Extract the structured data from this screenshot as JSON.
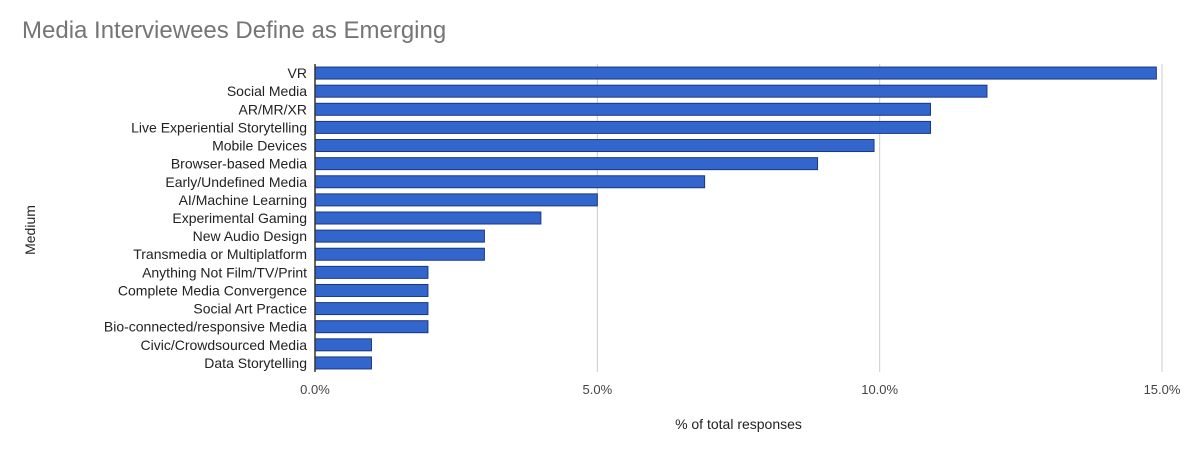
{
  "chart_data": {
    "type": "bar",
    "orientation": "horizontal",
    "title": "Media Interviewees Define as Emerging",
    "xlabel": "% of total responses",
    "ylabel": "Medium",
    "xlim": [
      0,
      15
    ],
    "xticks": [
      0,
      5,
      10,
      15
    ],
    "xtick_labels": [
      "0.0%",
      "5.0%",
      "10.0%",
      "15.0%"
    ],
    "grid": true,
    "legend": "none",
    "bar_color": "#3366cc",
    "bar_edge_color": "#1a3780",
    "categories": [
      "VR",
      "Social Media",
      "AR/MR/XR",
      "Live Experiential Storytelling",
      "Mobile Devices",
      "Browser-based Media",
      "Early/Undefined Media",
      "AI/Machine Learning",
      "Experimental Gaming",
      "New Audio Design",
      "Transmedia or Multiplatform",
      "Anything Not Film/TV/Print",
      "Complete Media Convergence",
      "Social Art Practice",
      "Bio-connected/responsive Media",
      "Civic/Crowdsourced Media",
      "Data Storytelling"
    ],
    "values": [
      14.9,
      11.9,
      10.9,
      10.9,
      9.9,
      8.9,
      6.9,
      5.0,
      4.0,
      3.0,
      3.0,
      2.0,
      2.0,
      2.0,
      2.0,
      1.0,
      1.0
    ]
  }
}
